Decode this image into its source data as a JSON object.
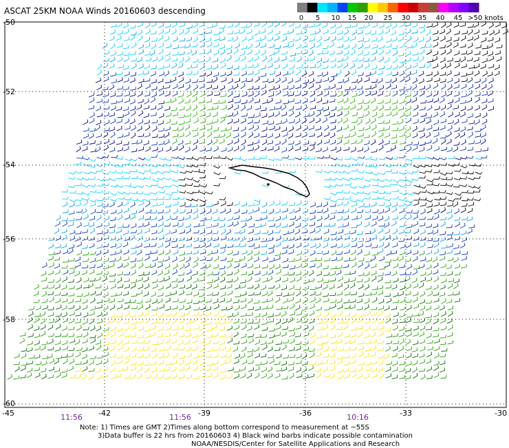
{
  "title": "ASCAT 25KM NOAA Winds 20160603 descending",
  "legend": {
    "labels": [
      "0",
      "5",
      "10",
      "15",
      "20",
      "25",
      "30",
      "35",
      "40",
      "45",
      ">50 knots"
    ],
    "colors": [
      "#808080",
      "#000000",
      "#00e5ff",
      "#00b4ff",
      "#0044ff",
      "#00c800",
      "#2ea000",
      "#ffff00",
      "#ffc800",
      "#ff6400",
      "#ff0000",
      "#c80000",
      "#c83c3c",
      "#8c5a3c",
      "#ff00ff",
      "#b400ff",
      "#8000ff",
      "#5000b4"
    ]
  },
  "map": {
    "lat_labels": [
      "-50",
      "-52",
      "-54",
      "-56",
      "-58",
      "-60"
    ],
    "lon_labels": [
      "-45",
      "-42",
      "-39",
      "-36",
      "-33",
      "-30"
    ],
    "time_labels": [
      "11:56",
      "11:56",
      "10:16"
    ]
  },
  "notes": {
    "line1": "Note: 1) Times are GMT 2)Times along bottom correspond to measurement at ~55S",
    "line2": "3)Data buffer is 22 hrs from 20160603 4) Black wind barbs indicate possible contamination",
    "line3": "NOAA/NESDIS/Center for Satellite Applications and Research"
  }
}
